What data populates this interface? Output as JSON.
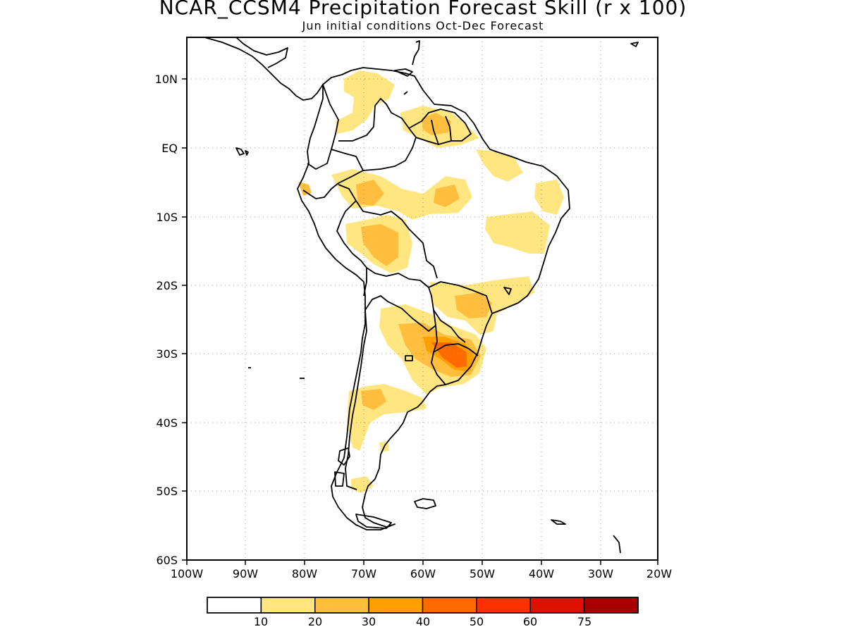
{
  "title": "NCAR_CCSM4 Precipitation Forecast Skill (r x 100)",
  "subtitle": "Jun initial conditions  Oct-Dec Forecast",
  "map": {
    "projection": "cylindrical equidistant",
    "lon_range": [
      -100,
      -20
    ],
    "lat_range": [
      -60,
      15
    ],
    "grid": "dotted",
    "x_tick_labels": [
      "100W",
      "90W",
      "80W",
      "70W",
      "60W",
      "50W",
      "40W",
      "30W",
      "20W"
    ],
    "y_tick_labels": [
      "10N",
      "EQ",
      "10S",
      "20S",
      "30S",
      "40S",
      "50S",
      "60S"
    ],
    "y_tick_values": [
      10,
      0,
      -10,
      -20,
      -30,
      -40,
      -50,
      -60
    ],
    "x_tick_values": [
      -100,
      -90,
      -80,
      -70,
      -60,
      -50,
      -40,
      -30,
      -20
    ]
  },
  "colorbar": {
    "colors": [
      "#ffffff",
      "#ffe680",
      "#ffbe3d",
      "#ffa000",
      "#ff6a00",
      "#ff3000",
      "#de1000",
      "#a80000"
    ],
    "labels": [
      "10",
      "20",
      "30",
      "40",
      "50",
      "60",
      "75"
    ]
  },
  "colors": {
    "skill_10_20": "#ffe680",
    "skill_20_30": "#ffbe3d",
    "skill_30_40": "#ffa000",
    "skill_40_50": "#ff6a00",
    "coastline": "#000000"
  }
}
